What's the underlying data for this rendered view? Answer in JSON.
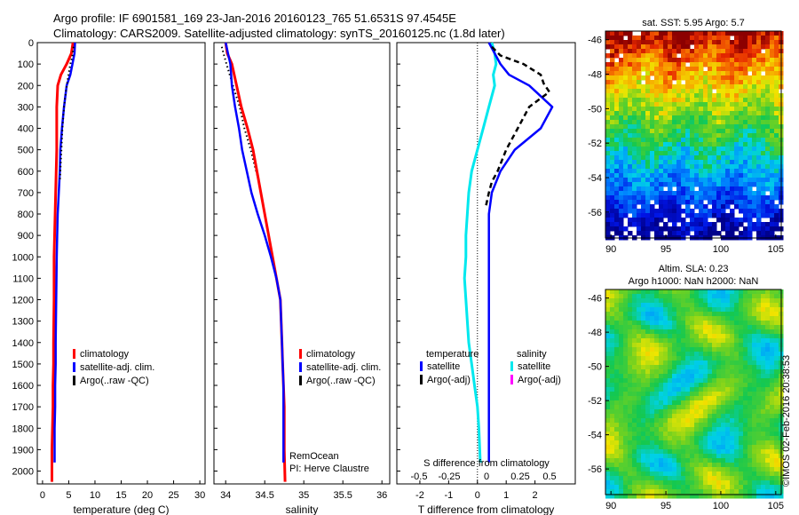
{
  "header": {
    "line1": "Argo profile: IF 6901581_169 23-Jan-2016 20160123_765 51.6531S 97.4545E",
    "line2": "Climatology: CARS2009. Satellite-adjusted climatology: synTS_20160125.nc (1.8d later)"
  },
  "colors": {
    "clim": "#ff0000",
    "sat": "#0000ff",
    "argo": "#000000",
    "sal_sat": "#00e8ee",
    "sal_argo": "#ff00ff"
  },
  "depth_ticks": [
    "0",
    "100",
    "200",
    "300",
    "400",
    "500",
    "600",
    "700",
    "800",
    "900",
    "1000",
    "1100",
    "1200",
    "1300",
    "1400",
    "1500",
    "1600",
    "1700",
    "1800",
    "1900",
    "2000"
  ],
  "chart_data": [
    {
      "type": "line",
      "xlabel": "temperature (deg C)",
      "xlim": [
        -1,
        31
      ],
      "ylim": [
        2060,
        0
      ],
      "xticks": [
        "0",
        "5",
        "10",
        "15",
        "20",
        "25",
        "30"
      ],
      "legend": [
        "climatology",
        "satellite-adj. clim.",
        "Argo(..raw -QC)"
      ],
      "series": [
        {
          "name": "climatology",
          "x": [
            5.8,
            5.5,
            4.6,
            3.5,
            2.9,
            2.7,
            2.7,
            2.7,
            2.6,
            2.5,
            2.4,
            2.3,
            2.2,
            2.2,
            2.1,
            2.1,
            2.0,
            2.0,
            1.9,
            1.8,
            1.8
          ],
          "y": [
            0,
            50,
            100,
            150,
            200,
            300,
            400,
            500,
            600,
            700,
            800,
            900,
            1000,
            1200,
            1400,
            1500,
            1600,
            1700,
            1800,
            1900,
            2050
          ]
        },
        {
          "name": "satellite-adj. clim.",
          "x": [
            6.2,
            6.1,
            5.7,
            5.3,
            4.6,
            4.1,
            3.7,
            3.4,
            3.3,
            3.1,
            2.9,
            2.8,
            2.7,
            2.6,
            2.5,
            2.5,
            2.4,
            2.4,
            2.3,
            2.3
          ],
          "y": [
            0,
            50,
            100,
            150,
            200,
            300,
            400,
            500,
            600,
            700,
            800,
            900,
            1000,
            1200,
            1400,
            1500,
            1600,
            1700,
            1800,
            1960
          ]
        },
        {
          "name": "Argo(..raw -QC)",
          "x": [
            5.9,
            5.7,
            5.3,
            4.9,
            4.5,
            4.1,
            3.8,
            3.6,
            3.4,
            3.3
          ],
          "y": [
            20,
            60,
            100,
            160,
            220,
            300,
            400,
            500,
            600,
            650
          ]
        }
      ]
    },
    {
      "type": "line",
      "xlabel": "salinity",
      "xlim": [
        33.85,
        36.1
      ],
      "ylim": [
        2060,
        0
      ],
      "xticks": [
        "34",
        "34.5",
        "35",
        "35.5",
        "36"
      ],
      "legend": [
        "climatology",
        "satellite-adj. clim.",
        "Argo(..raw -QC)"
      ],
      "annotations": [
        "RemOcean",
        "PI: Herve Claustre"
      ],
      "series": [
        {
          "name": "climatology",
          "x": [
            34.0,
            34.02,
            34.08,
            34.14,
            34.2,
            34.28,
            34.35,
            34.4,
            34.45,
            34.5,
            34.55,
            34.6,
            34.65,
            34.7,
            34.72,
            34.73,
            34.74,
            34.75,
            34.75,
            34.75,
            34.76
          ],
          "y": [
            0,
            50,
            100,
            200,
            300,
            400,
            500,
            600,
            700,
            800,
            900,
            1000,
            1100,
            1200,
            1400,
            1500,
            1600,
            1700,
            1800,
            1900,
            2050
          ]
        },
        {
          "name": "satellite-adj. clim.",
          "x": [
            34.0,
            34.03,
            34.06,
            34.08,
            34.12,
            34.17,
            34.21,
            34.27,
            34.33,
            34.41,
            34.5,
            34.58,
            34.65,
            34.7,
            34.72,
            34.73,
            34.74,
            34.74,
            34.74,
            34.74
          ],
          "y": [
            0,
            50,
            100,
            200,
            300,
            400,
            500,
            600,
            700,
            800,
            900,
            1000,
            1100,
            1200,
            1400,
            1500,
            1600,
            1700,
            1800,
            1960
          ]
        },
        {
          "name": "Argo(..raw -QC)",
          "x": [
            33.95,
            33.98,
            34.01,
            34.06,
            34.11,
            34.18,
            34.24,
            34.32,
            34.39,
            34.43
          ],
          "y": [
            20,
            60,
            100,
            160,
            220,
            300,
            400,
            500,
            600,
            650
          ]
        }
      ]
    },
    {
      "type": "line",
      "xlabel": "T difference from climatology",
      "xlabel_top": "S difference from climatology",
      "xlim": [
        -2.8,
        3.4
      ],
      "ylim": [
        2060,
        0
      ],
      "xticks": [
        "-2",
        "-1",
        "0",
        "1",
        "2"
      ],
      "xticks_top": [
        "-0.5",
        "-0.25",
        "0",
        "0.25",
        "0.5"
      ],
      "legend_titles": [
        "temperature",
        "salinity"
      ],
      "legend": [
        "satellite",
        "Argo(-adj)",
        "satellite",
        "Argo(-adj)"
      ],
      "series": [
        {
          "name": "satellite",
          "x": [
            0.4,
            0.6,
            0.8,
            1.1,
            1.8,
            2.6,
            2.2,
            1.3,
            0.8,
            0.5,
            0.4,
            0.4,
            0.4,
            0.4,
            0.4,
            0.4,
            0.4
          ],
          "y": [
            0,
            50,
            100,
            150,
            200,
            300,
            400,
            500,
            600,
            700,
            800,
            1000,
            1200,
            1400,
            1600,
            1800,
            1960
          ]
        },
        {
          "name": "Argo(-adj)",
          "x": [
            0.5,
            0.8,
            1.6,
            2.2,
            2.3,
            2.5,
            1.8,
            1.4,
            1.0,
            0.7,
            0.5,
            0.4,
            0.3
          ],
          "y": [
            20,
            60,
            100,
            150,
            190,
            230,
            300,
            400,
            500,
            600,
            650,
            700,
            760
          ]
        },
        {
          "name": "satellite",
          "x": [
            0.5,
            0.6,
            0.65,
            0.55,
            0.6,
            0.4,
            0.2,
            0.0,
            -0.2,
            -0.3,
            -0.35,
            -0.4,
            -0.4,
            -0.45,
            -0.4,
            -0.3,
            -0.2,
            -0.1,
            0.0,
            0.05,
            0.1
          ],
          "y": [
            0,
            50,
            100,
            150,
            200,
            300,
            400,
            500,
            600,
            700,
            800,
            900,
            1000,
            1100,
            1200,
            1400,
            1500,
            1600,
            1700,
            1800,
            1960
          ]
        }
      ]
    },
    {
      "type": "heatmap",
      "title": "sat. SST: 5.95 Argo: 5.7",
      "xlim": [
        89.5,
        105.5
      ],
      "ylim": [
        -57.5,
        -45.5
      ],
      "xticks": [
        "90",
        "95",
        "100",
        "105"
      ],
      "yticks": [
        "-46",
        "-48",
        "-50",
        "-52",
        "-54",
        "-56"
      ]
    },
    {
      "type": "heatmap",
      "title": "Altim. SLA: 0.23",
      "subtitle": "Argo h1000: NaN h2000: NaN",
      "xlim": [
        89.5,
        105.5
      ],
      "ylim": [
        -57.5,
        -45.5
      ],
      "xticks": [
        "90",
        "95",
        "100",
        "105"
      ],
      "yticks": [
        "-46",
        "-48",
        "-50",
        "-52",
        "-54",
        "-56"
      ]
    }
  ],
  "watermark": "©IMOS 02-Feb-2016 20:38:53"
}
